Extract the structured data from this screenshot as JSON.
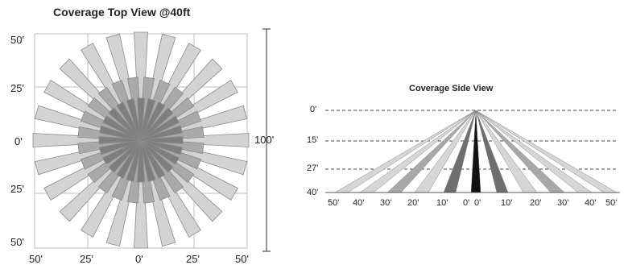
{
  "top_view": {
    "title": "Coverage Top View @40ft",
    "y_labels": [
      "50'",
      "25'",
      "0'",
      "25'",
      "50'"
    ],
    "x_labels": [
      "50'",
      "25'",
      "0'",
      "25'",
      "50'"
    ],
    "span_label": "100'",
    "colors": {
      "outer": "#d3d3d3",
      "middle": "#a9a9a9",
      "inner": "#7e7e7e",
      "stroke": "#8a8a8a",
      "grid": "#bdbdbd"
    }
  },
  "side_view": {
    "title": "Coverage Side View",
    "height_labels": [
      "0'",
      "15'",
      "27'",
      "40'"
    ],
    "distance_labels": [
      "50'",
      "40'",
      "30'",
      "20'",
      "10'",
      "0'",
      "0'",
      "10'",
      "20'",
      "30'",
      "40'",
      "50'"
    ],
    "colors": {
      "light": "#d6d6d6",
      "mid": "#a8a8a8",
      "dark": "#6e6e6e",
      "center": "#111111"
    }
  }
}
